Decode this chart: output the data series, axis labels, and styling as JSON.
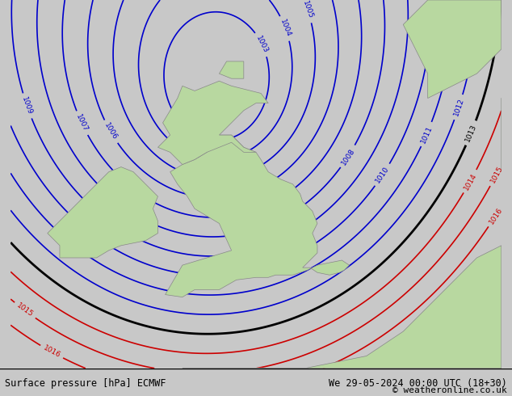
{
  "title_left": "Surface pressure [hPa] ECMWF",
  "title_right": "We 29-05-2024 00:00 UTC (18+30)",
  "title_right2": "© weatheronline.co.uk",
  "background_color": "#d0d0d0",
  "land_color": "#b8d8a0",
  "sea_color": "#d8d8d8",
  "blue_line_color": "#0000cc",
  "black_line_color": "#000000",
  "red_line_color": "#cc0000",
  "label_color_blue": "#0000cc",
  "label_color_black": "#000000",
  "label_color_red": "#cc0000",
  "figsize": [
    6.34,
    4.9
  ],
  "dpi": 100
}
